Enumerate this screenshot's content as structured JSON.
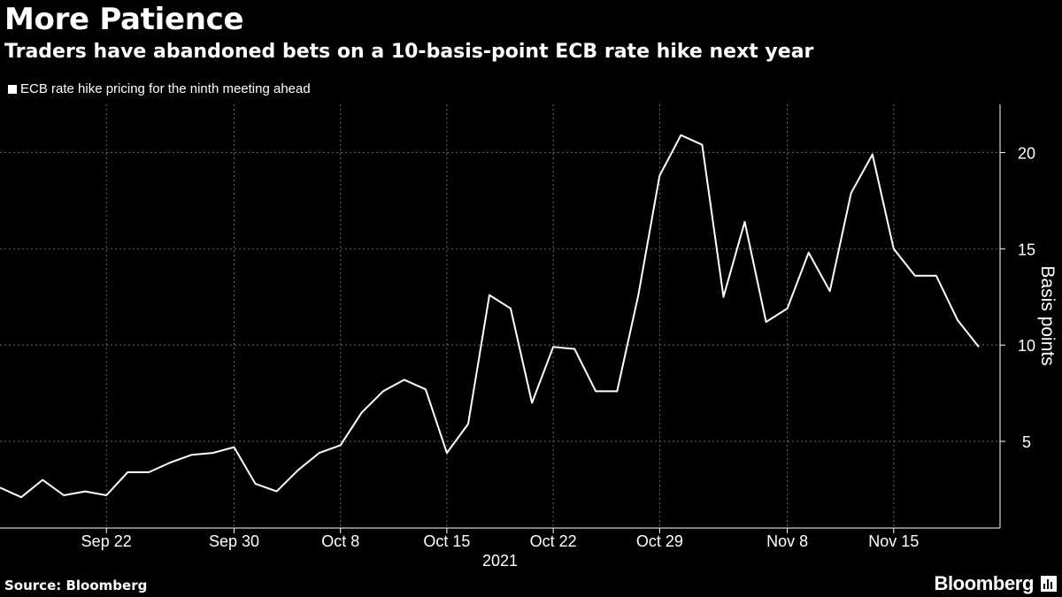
{
  "header": {
    "title": "More Patience",
    "subtitle": "Traders have abandoned bets on a 10-basis-point ECB rate hike next year"
  },
  "footer": {
    "source": "Source: Bloomberg",
    "brand": "Bloomberg"
  },
  "colors": {
    "background": "#000000",
    "line": "#ffffff",
    "grid": "#6a6a6a",
    "text": "#ffffff"
  },
  "chart_data": {
    "type": "line",
    "title": "More Patience",
    "subtitle": "Traders have abandoned bets on a 10-basis-point ECB rate hike next year",
    "ylabel": "Basis points",
    "xlabel": "2021",
    "ylim": [
      0.5,
      22.5
    ],
    "yticks": [
      5,
      10,
      15,
      20
    ],
    "grid": true,
    "legend_position": "top-left",
    "x_ticks": [
      {
        "label": "Sep 22",
        "index": 5
      },
      {
        "label": "Sep 30",
        "index": 11
      },
      {
        "label": "Oct 8",
        "index": 16
      },
      {
        "label": "Oct 15",
        "index": 21
      },
      {
        "label": "Oct 22",
        "index": 26
      },
      {
        "label": "Oct 29",
        "index": 31
      },
      {
        "label": "Nov 8",
        "index": 37
      },
      {
        "label": "Nov 15",
        "index": 42
      }
    ],
    "x_count": 47,
    "series": [
      {
        "name": "ECB rate hike pricing for the ninth meeting ahead",
        "values": [
          2.6,
          2.1,
          3.0,
          2.2,
          2.4,
          2.2,
          3.4,
          3.4,
          3.9,
          4.3,
          4.4,
          4.7,
          2.8,
          2.4,
          3.5,
          4.4,
          4.8,
          6.5,
          7.6,
          8.2,
          7.7,
          4.4,
          5.9,
          12.6,
          11.9,
          7.0,
          9.9,
          9.8,
          7.6,
          7.6,
          12.6,
          18.8,
          20.9,
          20.4,
          12.5,
          16.4,
          11.2,
          11.9,
          14.8,
          12.8,
          17.9,
          19.9,
          15.0,
          13.6,
          13.6,
          11.3,
          9.9
        ]
      }
    ]
  }
}
